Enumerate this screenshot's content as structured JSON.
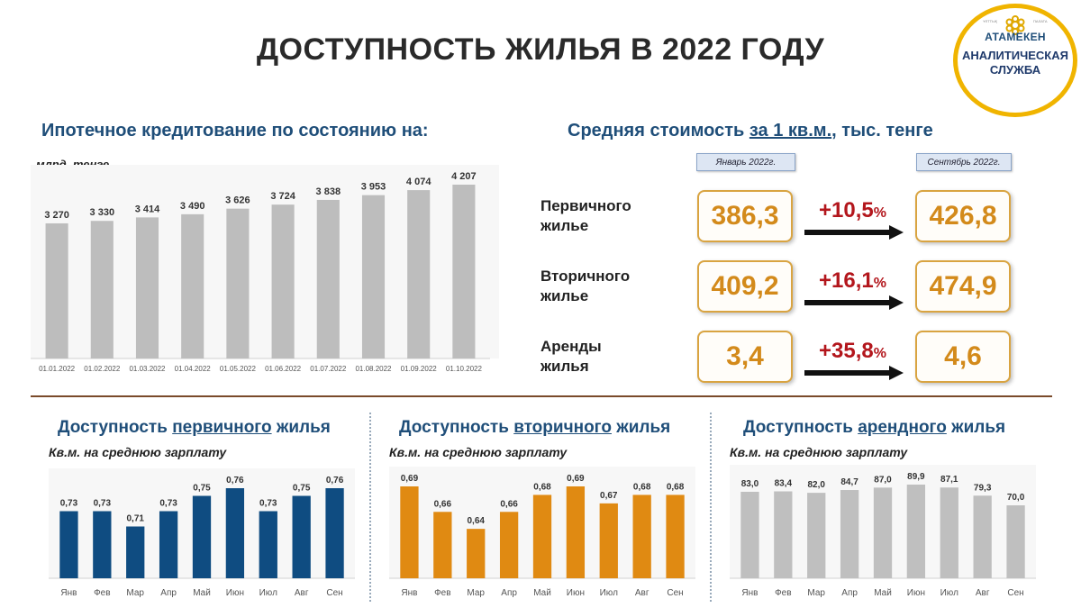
{
  "page": {
    "title": "ДОСТУПНОСТЬ ЖИЛЬЯ В 2022 ГОДУ"
  },
  "logo": {
    "brand": "АТАМЕКЕН",
    "service_line1": "АНАЛИТИЧЕСКАЯ",
    "service_line2": "СЛУЖБА",
    "tiny_left": "ҰЛТТЫҚ",
    "tiny_right": "ПАЛАТА"
  },
  "mortgage": {
    "title": "Ипотечное кредитование по состоянию на:",
    "unit": "млрд. тенге"
  },
  "prices": {
    "title_pre": "Средняя стоимость ",
    "title_underlined": "за 1 кв.м.",
    "title_post": ", тыс. тенге",
    "tag_from": "Январь 2022г.",
    "tag_to": "Сентябрь 2022г.",
    "rows": [
      {
        "label1": "Первичного",
        "label2": "жилье",
        "from": "386,3",
        "pct": "+10,5",
        "pct_sign": "%",
        "to": "426,8"
      },
      {
        "label1": "Вторичного",
        "label2": "жилье",
        "from": "409,2",
        "pct": "+16,1",
        "pct_sign": "%",
        "to": "474,9"
      },
      {
        "label1": "Аренды",
        "label2": "жилья",
        "from": "3,4",
        "pct": "+35,8",
        "pct_sign": "%",
        "to": "4,6"
      }
    ]
  },
  "minis": {
    "primary": {
      "pre": "Доступность ",
      "underlined": "первичного",
      "post": " жилья",
      "sub": "Кв.м. на среднюю зарплату"
    },
    "secondary": {
      "pre": "Доступность ",
      "underlined": "вторичного",
      "post": " жилья",
      "sub": "Кв.м. на среднюю зарплату"
    },
    "rental": {
      "pre": "Доступность ",
      "underlined": "арендного",
      "post": " жилья",
      "sub": "Кв.м. на среднюю зарплату"
    }
  },
  "colors": {
    "mortgage_bar": "#bdbdbd",
    "primary_bar": "#0f4c81",
    "secondary_bar": "#e08a12",
    "rental_bar": "#bfbfbf",
    "price_value": "#d38a1b",
    "pct": "#b3161c"
  },
  "chart_data": [
    {
      "id": "mortgage",
      "type": "bar",
      "title": "Ипотечное кредитование по состоянию на:",
      "ylabel": "млрд. тенге",
      "categories": [
        "01.01.2022",
        "01.02.2022",
        "01.03.2022",
        "01.04.2022",
        "01.05.2022",
        "01.06.2022",
        "01.07.2022",
        "01.08.2022",
        "01.09.2022",
        "01.10.2022"
      ],
      "values": [
        3270,
        3330,
        3414,
        3490,
        3626,
        3724,
        3838,
        3953,
        4074,
        4207
      ],
      "labels": [
        "3 270",
        "3 330",
        "3 414",
        "3 490",
        "3 626",
        "3 724",
        "3 838",
        "3 953",
        "4 074",
        "4 207"
      ],
      "ylim": [
        0,
        4207
      ]
    },
    {
      "id": "primary",
      "type": "bar",
      "title": "Доступность первичного жилья",
      "ylabel": "Кв.м. на среднюю зарплату",
      "categories": [
        "Янв",
        "Фев",
        "Мар",
        "Апр",
        "Май",
        "Июн",
        "Июл",
        "Авг",
        "Сен"
      ],
      "values": [
        0.73,
        0.73,
        0.71,
        0.73,
        0.75,
        0.76,
        0.73,
        0.75,
        0.76
      ],
      "labels": [
        "0,73",
        "0,73",
        "0,71",
        "0,73",
        "0,75",
        "0,76",
        "0,73",
        "0,75",
        "0,76"
      ],
      "ylim": [
        0.68,
        0.76
      ]
    },
    {
      "id": "secondary",
      "type": "bar",
      "title": "Доступность вторичного жилья",
      "ylabel": "Кв.м. на среднюю зарплату",
      "categories": [
        "Янв",
        "Фев",
        "Мар",
        "Апр",
        "Май",
        "Июн",
        "Июл",
        "Авг",
        "Сен"
      ],
      "values": [
        0.69,
        0.66,
        0.64,
        0.66,
        0.68,
        0.69,
        0.67,
        0.68,
        0.68
      ],
      "labels": [
        "0,69",
        "0,66",
        "0,64",
        "0,66",
        "0,68",
        "0,69",
        "0,67",
        "0,68",
        "0,68"
      ],
      "ylim": [
        0.62,
        0.69
      ]
    },
    {
      "id": "rental",
      "type": "bar",
      "title": "Доступность арендного жилья",
      "ylabel": "Кв.м. на среднюю зарплату",
      "categories": [
        "Янв",
        "Фев",
        "Мар",
        "Апр",
        "Май",
        "Июн",
        "Июл",
        "Авг",
        "Сен"
      ],
      "values": [
        83.0,
        83.4,
        82.0,
        84.7,
        87.0,
        89.9,
        87.1,
        79.3,
        70.0
      ],
      "labels": [
        "83,0",
        "83,4",
        "82,0",
        "84,7",
        "87,0",
        "89,9",
        "87,1",
        "79,3",
        "70,0"
      ],
      "ylim": [
        0,
        89.9
      ]
    }
  ]
}
